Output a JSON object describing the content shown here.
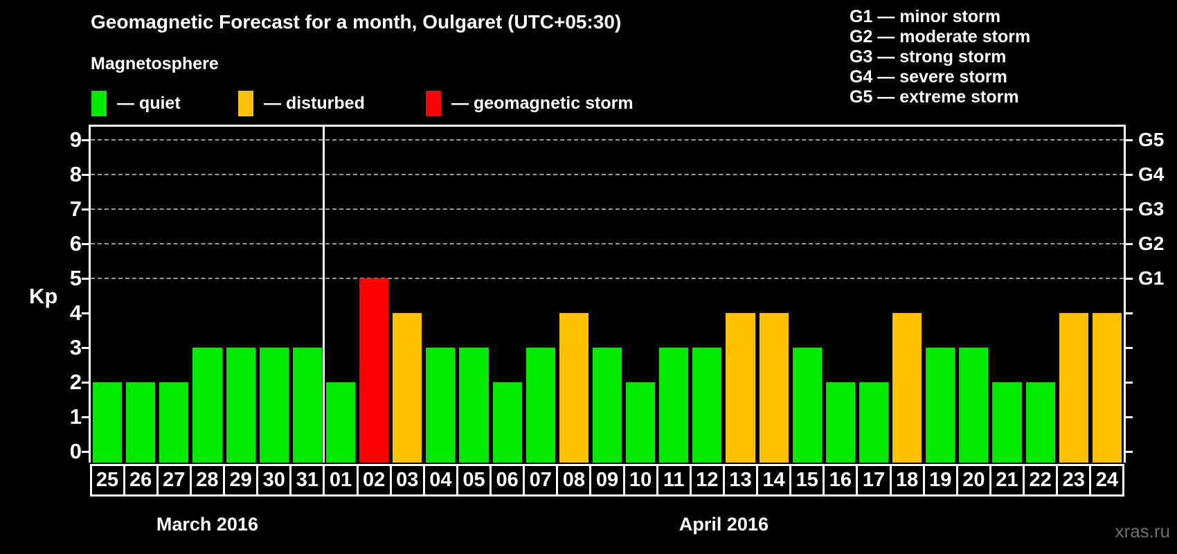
{
  "header": {
    "title": "Geomagnetic Forecast for a month, Oulgaret (UTC+05:30)",
    "subtitle": "Magnetosphere"
  },
  "legend": {
    "items": [
      {
        "key": "quiet",
        "label": "— quiet",
        "color": "#00ea00"
      },
      {
        "key": "disturbed",
        "label": "— disturbed",
        "color": "#ffc000"
      },
      {
        "key": "storm",
        "label": "— geomagnetic storm",
        "color": "#ff0000"
      }
    ]
  },
  "g_levels": [
    {
      "code": "G1",
      "kp": 5,
      "legend": "G1 — minor storm"
    },
    {
      "code": "G2",
      "kp": 6,
      "legend": "G2 — moderate storm"
    },
    {
      "code": "G3",
      "kp": 7,
      "legend": "G3 — strong storm"
    },
    {
      "code": "G4",
      "kp": 8,
      "legend": "G4 — severe storm"
    },
    {
      "code": "G5",
      "kp": 9,
      "legend": "G5 — extreme storm"
    }
  ],
  "axis": {
    "ylabel": "Kp",
    "yticks": [
      0,
      1,
      2,
      3,
      4,
      5,
      6,
      7,
      8,
      9
    ],
    "grid_kp": [
      5,
      6,
      7,
      8,
      9
    ],
    "axis_color": "#ffffff",
    "grid_color": "#9a9a9a"
  },
  "watermark": "xras.ru",
  "chart_data": {
    "type": "bar",
    "title": "Geomagnetic Forecast for a month, Oulgaret (UTC+05:30)",
    "xlabel": "",
    "ylabel": "Kp",
    "ylim": [
      0,
      9.4
    ],
    "grid": "dashed horizontal at Kp 5-9",
    "legend_position": "top-left",
    "categories": [
      "25",
      "26",
      "27",
      "28",
      "29",
      "30",
      "31",
      "01",
      "02",
      "03",
      "04",
      "05",
      "06",
      "07",
      "08",
      "09",
      "10",
      "11",
      "12",
      "13",
      "14",
      "15",
      "16",
      "17",
      "18",
      "19",
      "20",
      "21",
      "22",
      "23",
      "24"
    ],
    "values": [
      2,
      2,
      2,
      3,
      3,
      3,
      3,
      2,
      5,
      4,
      3,
      3,
      2,
      3,
      4,
      3,
      2,
      3,
      3,
      4,
      4,
      3,
      2,
      2,
      4,
      3,
      3,
      2,
      2,
      4,
      4
    ],
    "levels": [
      "quiet",
      "quiet",
      "quiet",
      "quiet",
      "quiet",
      "quiet",
      "quiet",
      "quiet",
      "storm",
      "disturbed",
      "quiet",
      "quiet",
      "quiet",
      "quiet",
      "disturbed",
      "quiet",
      "quiet",
      "quiet",
      "quiet",
      "disturbed",
      "disturbed",
      "quiet",
      "quiet",
      "quiet",
      "disturbed",
      "quiet",
      "quiet",
      "quiet",
      "quiet",
      "disturbed",
      "disturbed"
    ],
    "months": [
      {
        "label": "March 2016",
        "day_count": 7
      },
      {
        "label": "April 2016",
        "day_count": 24
      }
    ]
  }
}
